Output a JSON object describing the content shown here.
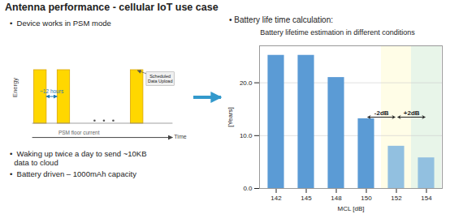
{
  "title": "Antenna performance - cellular IoT use case",
  "annotations": [
    "•  Device works in PSM mode",
    "•  Waking up twice a day to send ~10KB\n  data to cloud",
    "•  Battery driven – 1000mAh capacity"
  ],
  "diagram": {
    "y_label": "Energy",
    "interval_label": "~12 hours",
    "floor_label": "PSM floor current",
    "x_label": "Time",
    "event_label": "Scheduled\nData Upload"
  },
  "chart_data": {
    "type": "bar",
    "title": "Battery lifetime estimation in different conditions",
    "subtitle": "•  Battery life time calculation:",
    "xlabel": "MCL [dB]",
    "ylabel": "[Years]",
    "categories": [
      "142",
      "145",
      "148",
      "150",
      "152",
      "154"
    ],
    "values": [
      25.2,
      25.2,
      21.0,
      13.2,
      8.0,
      5.8
    ],
    "colors": [
      "#5B9BD5",
      "#5B9BD5",
      "#5B9BD5",
      "#5B9BD5",
      "#92C0E0",
      "#92C0E0"
    ],
    "ylim": [
      0,
      27
    ],
    "yticks": [
      {
        "value": 0,
        "label": "0.0"
      },
      {
        "value": 10,
        "label": "10.0"
      },
      {
        "value": 20,
        "label": "20.0"
      }
    ],
    "grid": true,
    "highlights": [
      {
        "category": "152",
        "color": "#FFFDE7"
      },
      {
        "category": "154",
        "color": "#E8F5E9"
      }
    ],
    "annotations": [
      {
        "text": "-2dB",
        "from": "150",
        "to": "152",
        "y": 13.5,
        "color": "#222222"
      },
      {
        "text": "+2dB",
        "from": "152",
        "to": "154",
        "y": 13.5,
        "color": "#222222"
      }
    ]
  }
}
